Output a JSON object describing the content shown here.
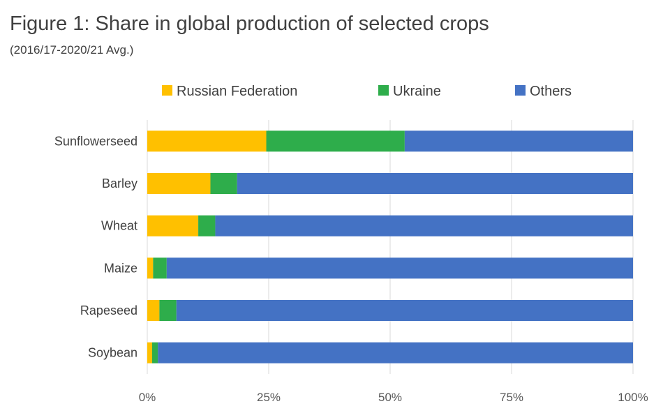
{
  "chart_data": {
    "type": "bar",
    "orientation": "horizontal",
    "stacked": true,
    "title": "Figure 1: Share in global production of selected crops",
    "subtitle": "(2016/17-2020/21 Avg.)",
    "xlabel": "",
    "ylabel": "",
    "xlim": [
      0,
      100
    ],
    "x_ticks": [
      "0%",
      "25%",
      "50%",
      "75%",
      "100%"
    ],
    "grid": "vertical",
    "legend": "top",
    "categories": [
      "Sunflowerseed",
      "Barley",
      "Wheat",
      "Maize",
      "Rapeseed",
      "Soybean"
    ],
    "series": [
      {
        "name": "Russian Federation",
        "color": "#FFC000",
        "values": [
          24.5,
          13,
          10.5,
          1.2,
          2.5,
          1
        ]
      },
      {
        "name": "Ukraine",
        "color": "#2EAD4B",
        "values": [
          28.5,
          5.5,
          3.5,
          2.8,
          3.5,
          1.2
        ]
      },
      {
        "name": "Others",
        "color": "#4472C4",
        "values": [
          47,
          81.5,
          86,
          96,
          94,
          97.8
        ]
      }
    ]
  }
}
